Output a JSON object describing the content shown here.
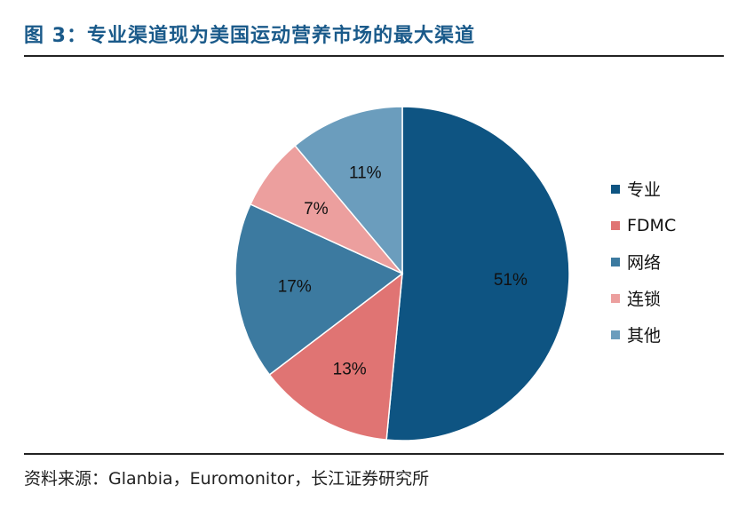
{
  "header": {
    "title": "图 3：专业渠道现为美国运动营养市场的最大渠道"
  },
  "footer": {
    "source": "资料来源：Glanbia，Euromonitor，长江证券研究所"
  },
  "chart_data": {
    "type": "pie",
    "title": "图 3：专业渠道现为美国运动营养市场的最大渠道",
    "categories": [
      "专业",
      "FDMC",
      "网络",
      "连锁",
      "其他"
    ],
    "values": [
      51,
      13,
      17,
      7,
      11
    ],
    "labels": [
      "51%",
      "13%",
      "17%",
      "7%",
      "11%"
    ],
    "colors": [
      "#0e5482",
      "#e07473",
      "#3c7aa0",
      "#ec9f9e",
      "#6b9dbd"
    ],
    "legend_position": "right",
    "start": "12 o'clock",
    "direction": "clockwise"
  }
}
